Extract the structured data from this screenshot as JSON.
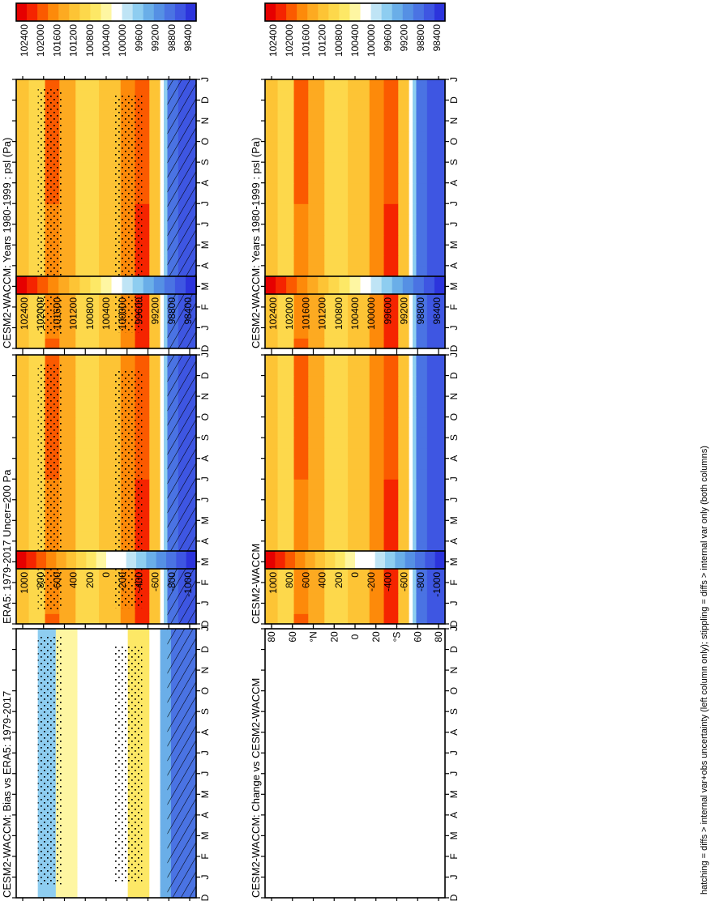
{
  "figure_note": "hatching = diffs > internal var+obs uncertainty (left column only); stippling = diffs > internal var only (both columns)",
  "months": [
    "D",
    "J",
    "F",
    "M",
    "A",
    "M",
    "J",
    "J",
    "A",
    "S",
    "O",
    "N",
    "D",
    "J"
  ],
  "lat_ticks": [
    "80",
    "60",
    "°N",
    "20",
    "0",
    "20",
    "°S",
    "60",
    "80"
  ],
  "colors": {
    "psl_levels": [
      "#e60000",
      "#f52400",
      "#fb5a00",
      "#fd8a0a",
      "#fdaa21",
      "#fdc435",
      "#fdd84b",
      "#fde866",
      "#fef6a2",
      "#ffffff",
      "#bfe4f5",
      "#8ecdf0",
      "#6aaee8",
      "#5590e4",
      "#4a73e3",
      "#3e56e2",
      "#2c34dc"
    ],
    "diff_levels": [
      "#e60000",
      "#f52400",
      "#fb5a00",
      "#fd8a0a",
      "#fdaa21",
      "#fdc435",
      "#fdd84b",
      "#fde866",
      "#fef6a2",
      "#ffffff",
      "#ffffff",
      "#bfe4f5",
      "#8ecdf0",
      "#6aaee8",
      "#5590e4",
      "#4a73e3",
      "#3e56e2",
      "#2c34dc"
    ]
  },
  "chart_data": [
    {
      "id": "model-left",
      "type": "heatmap",
      "title": "CESM2-WACCM: Years 1980-1999 : psl (Pa)",
      "x_categories": [
        "D",
        "J",
        "F",
        "M",
        "A",
        "M",
        "J",
        "J",
        "A",
        "S",
        "O",
        "N",
        "D",
        "J"
      ],
      "y_ticks": [
        "80",
        "60",
        "°N",
        "20",
        "0",
        "20",
        "°S",
        "60",
        "80"
      ],
      "y_range": [
        -90,
        90
      ],
      "colorbar_ticks": [
        "102400",
        "102000",
        "101600",
        "101200",
        "100800",
        "100400",
        "100000",
        "99600",
        "99200",
        "98800",
        "98400"
      ],
      "colorbar_range": [
        98200,
        102600
      ],
      "stippling": true,
      "hatching": true
    },
    {
      "id": "model-right",
      "type": "heatmap",
      "title": "CESM2-WACCM: Years 1980-1999 : psl (Pa)",
      "x_categories": [
        "D",
        "J",
        "F",
        "M",
        "A",
        "M",
        "J",
        "J",
        "A",
        "S",
        "O",
        "N",
        "D",
        "J"
      ],
      "y_ticks": [
        "80",
        "60",
        "°N",
        "20",
        "0",
        "20",
        "°S",
        "60",
        "80"
      ],
      "y_range": [
        -90,
        90
      ],
      "colorbar_ticks": [
        "102400",
        "102000",
        "101600",
        "101200",
        "100800",
        "100400",
        "100000",
        "99600",
        "99200",
        "98800",
        "98400"
      ],
      "colorbar_range": [
        98200,
        102600
      ],
      "stippling": false,
      "hatching": false
    },
    {
      "id": "obs-left",
      "type": "heatmap",
      "title": "ERA5: 1979-2017 Uncer=200 Pa",
      "x_categories": [
        "D",
        "J",
        "F",
        "M",
        "A",
        "M",
        "J",
        "J",
        "A",
        "S",
        "O",
        "N",
        "D",
        "J"
      ],
      "y_ticks": [
        "80",
        "60",
        "°N",
        "20",
        "0",
        "20",
        "°S",
        "60",
        "80"
      ],
      "y_range": [
        -90,
        90
      ],
      "colorbar_ticks": [
        "102400",
        "102000",
        "101600",
        "101200",
        "100800",
        "100400",
        "100000",
        "99600",
        "99200",
        "98800",
        "98400"
      ],
      "colorbar_range": [
        98200,
        102600
      ],
      "stippling": true,
      "hatching": true
    },
    {
      "id": "obs-right",
      "type": "heatmap",
      "title": "CESM2-WACCM",
      "x_categories": [
        "D",
        "J",
        "F",
        "M",
        "A",
        "M",
        "J",
        "J",
        "A",
        "S",
        "O",
        "N",
        "D",
        "J"
      ],
      "y_ticks": [
        "80",
        "60",
        "°N",
        "20",
        "0",
        "20",
        "°S",
        "60",
        "80"
      ],
      "y_range": [
        -90,
        90
      ],
      "colorbar_ticks": [
        "102400",
        "102000",
        "101600",
        "101200",
        "100800",
        "100400",
        "100000",
        "99600",
        "99200",
        "98800",
        "98400"
      ],
      "colorbar_range": [
        98200,
        102600
      ],
      "stippling": false,
      "hatching": false
    },
    {
      "id": "bias-left",
      "type": "heatmap",
      "title": "CESM2-WACCM: Bias vs ERA5: 1979-2017",
      "x_categories": [
        "D",
        "J",
        "F",
        "M",
        "A",
        "M",
        "J",
        "J",
        "A",
        "S",
        "O",
        "N",
        "D",
        "J"
      ],
      "y_ticks": [
        "80",
        "60",
        "°N",
        "20",
        "0",
        "20",
        "°S",
        "60",
        "80"
      ],
      "y_range": [
        -90,
        90
      ],
      "colorbar_ticks": [
        "1000",
        "800",
        "600",
        "400",
        "200",
        "0",
        "-200",
        "-400",
        "-600",
        "-800",
        "-1000"
      ],
      "colorbar_range": [
        -1100,
        1100
      ],
      "stippling": true,
      "hatching": true
    },
    {
      "id": "change-right",
      "type": "heatmap",
      "title": "CESM2-WACCM: Change vs CESM2-WACCM",
      "x_categories": [
        "D",
        "J",
        "F",
        "M",
        "A",
        "M",
        "J",
        "J",
        "A",
        "S",
        "O",
        "N",
        "D",
        "J"
      ],
      "y_ticks": [
        "80",
        "60",
        "°N",
        "20",
        "0",
        "20",
        "°S",
        "60",
        "80"
      ],
      "y_range": [
        -90,
        90
      ],
      "colorbar_ticks": [
        "1000",
        "800",
        "600",
        "400",
        "200",
        "0",
        "-200",
        "-400",
        "-600",
        "-800",
        "-1000"
      ],
      "colorbar_range": [
        -1100,
        1100
      ],
      "stippling": false,
      "hatching": false,
      "values": "all zero (blank panel)"
    }
  ]
}
